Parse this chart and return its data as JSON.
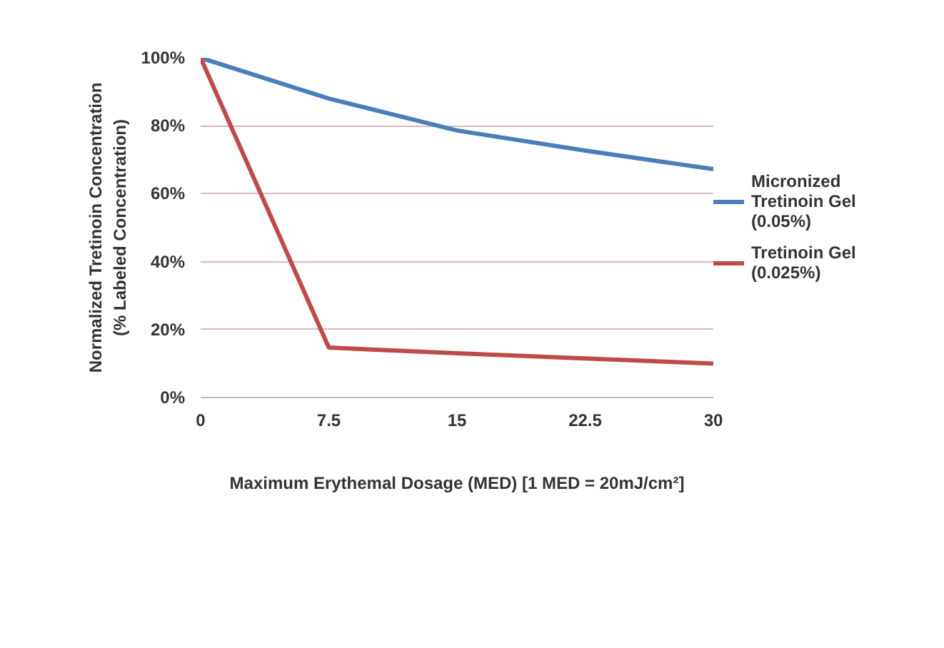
{
  "chart_data": {
    "type": "line",
    "xlabel": "Maximum Erythemal Dosage (MED) [1 MED = 20mJ/cm²]",
    "ylabel": "Normalized Tretinoin Concentration (% Labeled Concentration)",
    "x": [
      0,
      7.5,
      15,
      22.5,
      30
    ],
    "series": [
      {
        "name": "Micronized Tretinoin Gel (0.05%)",
        "color": "#4a7ebb",
        "values": [
          100,
          88,
          78.6,
          72.7,
          67.2
        ]
      },
      {
        "name": "Tretinoin Gel (0.025%)",
        "color": "#be4b48",
        "values": [
          100,
          14.7,
          13,
          11.5,
          10
        ]
      }
    ],
    "xlim": [
      0,
      30
    ],
    "xticks": [
      0,
      7.5,
      15,
      22.5,
      30
    ],
    "ylim": [
      0,
      100
    ],
    "yticks": [
      {
        "value": 0,
        "label": "0%"
      },
      {
        "value": 20,
        "label": "20%"
      },
      {
        "value": 40,
        "label": "40%"
      },
      {
        "value": 60,
        "label": "60%"
      },
      {
        "value": 80,
        "label": "80%"
      },
      {
        "value": 100,
        "label": "100%"
      }
    ],
    "grid": "y",
    "legend": "right",
    "marker": "none",
    "line_style": "solid"
  }
}
